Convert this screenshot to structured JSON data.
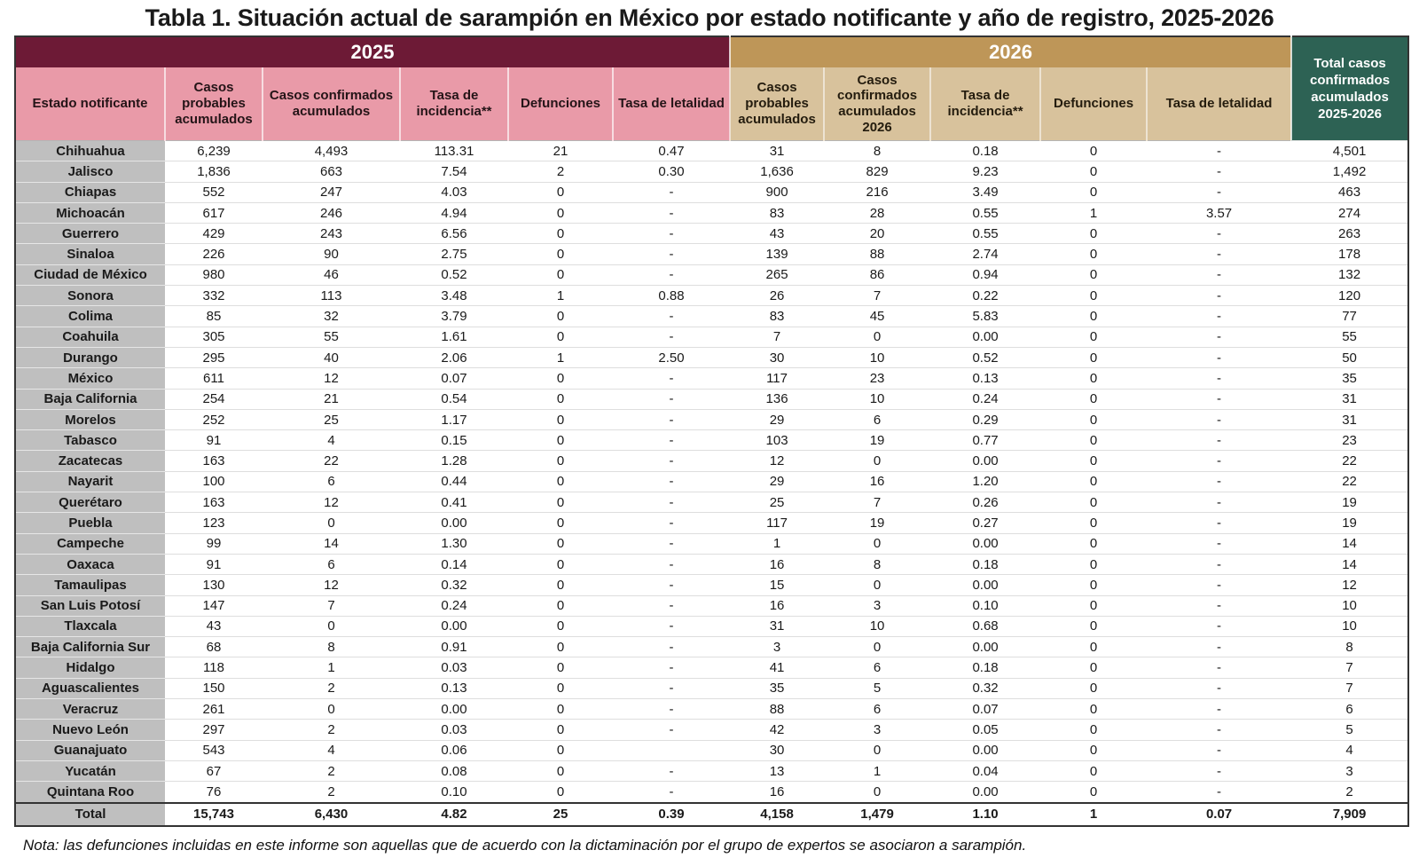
{
  "title": "Tabla 1. Situación actual de sarampión en México por estado notificante y año de registro, 2025-2026",
  "table": {
    "year_2025_label": "2025",
    "year_2026_label": "2026",
    "state_header": "Estado notificante",
    "columns_2025": [
      "Casos probables acumulados",
      "Casos confirmados acumulados",
      "Tasa de incidencia**",
      "Defunciones",
      "Tasa de letalidad"
    ],
    "columns_2026": [
      "Casos probables acumulados",
      "Casos confirmados acumulados 2026",
      "Tasa de incidencia**",
      "Defunciones",
      "Tasa de letalidad"
    ],
    "total_header": "Total casos confirmados acumulados 2025-2026",
    "rows": [
      {
        "state": "Chihuahua",
        "values": [
          "6,239",
          "4,493",
          "113.31",
          "21",
          "0.47",
          "31",
          "8",
          "0.18",
          "0",
          "-",
          "4,501"
        ]
      },
      {
        "state": "Jalisco",
        "values": [
          "1,836",
          "663",
          "7.54",
          "2",
          "0.30",
          "1,636",
          "829",
          "9.23",
          "0",
          "-",
          "1,492"
        ]
      },
      {
        "state": "Chiapas",
        "values": [
          "552",
          "247",
          "4.03",
          "0",
          "-",
          "900",
          "216",
          "3.49",
          "0",
          "-",
          "463"
        ]
      },
      {
        "state": "Michoacán",
        "values": [
          "617",
          "246",
          "4.94",
          "0",
          "-",
          "83",
          "28",
          "0.55",
          "1",
          "3.57",
          "274"
        ]
      },
      {
        "state": "Guerrero",
        "values": [
          "429",
          "243",
          "6.56",
          "0",
          "-",
          "43",
          "20",
          "0.55",
          "0",
          "-",
          "263"
        ]
      },
      {
        "state": "Sinaloa",
        "values": [
          "226",
          "90",
          "2.75",
          "0",
          "-",
          "139",
          "88",
          "2.74",
          "0",
          "-",
          "178"
        ]
      },
      {
        "state": "Ciudad de México",
        "values": [
          "980",
          "46",
          "0.52",
          "0",
          "-",
          "265",
          "86",
          "0.94",
          "0",
          "-",
          "132"
        ]
      },
      {
        "state": "Sonora",
        "values": [
          "332",
          "113",
          "3.48",
          "1",
          "0.88",
          "26",
          "7",
          "0.22",
          "0",
          "-",
          "120"
        ]
      },
      {
        "state": "Colima",
        "values": [
          "85",
          "32",
          "3.79",
          "0",
          "-",
          "83",
          "45",
          "5.83",
          "0",
          "-",
          "77"
        ]
      },
      {
        "state": "Coahuila",
        "values": [
          "305",
          "55",
          "1.61",
          "0",
          "-",
          "7",
          "0",
          "0.00",
          "0",
          "-",
          "55"
        ]
      },
      {
        "state": "Durango",
        "values": [
          "295",
          "40",
          "2.06",
          "1",
          "2.50",
          "30",
          "10",
          "0.52",
          "0",
          "-",
          "50"
        ]
      },
      {
        "state": "México",
        "values": [
          "611",
          "12",
          "0.07",
          "0",
          "-",
          "117",
          "23",
          "0.13",
          "0",
          "-",
          "35"
        ]
      },
      {
        "state": "Baja California",
        "values": [
          "254",
          "21",
          "0.54",
          "0",
          "-",
          "136",
          "10",
          "0.24",
          "0",
          "-",
          "31"
        ]
      },
      {
        "state": "Morelos",
        "values": [
          "252",
          "25",
          "1.17",
          "0",
          "-",
          "29",
          "6",
          "0.29",
          "0",
          "-",
          "31"
        ]
      },
      {
        "state": "Tabasco",
        "values": [
          "91",
          "4",
          "0.15",
          "0",
          "-",
          "103",
          "19",
          "0.77",
          "0",
          "-",
          "23"
        ]
      },
      {
        "state": "Zacatecas",
        "values": [
          "163",
          "22",
          "1.28",
          "0",
          "-",
          "12",
          "0",
          "0.00",
          "0",
          "-",
          "22"
        ]
      },
      {
        "state": "Nayarit",
        "values": [
          "100",
          "6",
          "0.44",
          "0",
          "-",
          "29",
          "16",
          "1.20",
          "0",
          "-",
          "22"
        ]
      },
      {
        "state": "Querétaro",
        "values": [
          "163",
          "12",
          "0.41",
          "0",
          "-",
          "25",
          "7",
          "0.26",
          "0",
          "-",
          "19"
        ]
      },
      {
        "state": "Puebla",
        "values": [
          "123",
          "0",
          "0.00",
          "0",
          "-",
          "117",
          "19",
          "0.27",
          "0",
          "-",
          "19"
        ]
      },
      {
        "state": "Campeche",
        "values": [
          "99",
          "14",
          "1.30",
          "0",
          "-",
          "1",
          "0",
          "0.00",
          "0",
          "-",
          "14"
        ]
      },
      {
        "state": "Oaxaca",
        "values": [
          "91",
          "6",
          "0.14",
          "0",
          "-",
          "16",
          "8",
          "0.18",
          "0",
          "-",
          "14"
        ]
      },
      {
        "state": "Tamaulipas",
        "values": [
          "130",
          "12",
          "0.32",
          "0",
          "-",
          "15",
          "0",
          "0.00",
          "0",
          "-",
          "12"
        ]
      },
      {
        "state": "San Luis Potosí",
        "values": [
          "147",
          "7",
          "0.24",
          "0",
          "-",
          "16",
          "3",
          "0.10",
          "0",
          "-",
          "10"
        ]
      },
      {
        "state": "Tlaxcala",
        "values": [
          "43",
          "0",
          "0.00",
          "0",
          "-",
          "31",
          "10",
          "0.68",
          "0",
          "-",
          "10"
        ]
      },
      {
        "state": "Baja California Sur",
        "values": [
          "68",
          "8",
          "0.91",
          "0",
          "-",
          "3",
          "0",
          "0.00",
          "0",
          "-",
          "8"
        ]
      },
      {
        "state": "Hidalgo",
        "values": [
          "118",
          "1",
          "0.03",
          "0",
          "-",
          "41",
          "6",
          "0.18",
          "0",
          "-",
          "7"
        ]
      },
      {
        "state": "Aguascalientes",
        "values": [
          "150",
          "2",
          "0.13",
          "0",
          "-",
          "35",
          "5",
          "0.32",
          "0",
          "-",
          "7"
        ]
      },
      {
        "state": "Veracruz",
        "values": [
          "261",
          "0",
          "0.00",
          "0",
          "-",
          "88",
          "6",
          "0.07",
          "0",
          "-",
          "6"
        ]
      },
      {
        "state": "Nuevo León",
        "values": [
          "297",
          "2",
          "0.03",
          "0",
          "-",
          "42",
          "3",
          "0.05",
          "0",
          "-",
          "5"
        ]
      },
      {
        "state": "Guanajuato",
        "values": [
          "543",
          "4",
          "0.06",
          "0",
          "",
          "30",
          "0",
          "0.00",
          "0",
          "-",
          "4"
        ]
      },
      {
        "state": "Yucatán",
        "values": [
          "67",
          "2",
          "0.08",
          "0",
          "-",
          "13",
          "1",
          "0.04",
          "0",
          "-",
          "3"
        ]
      },
      {
        "state": "Quintana Roo",
        "values": [
          "76",
          "2",
          "0.10",
          "0",
          "-",
          "16",
          "0",
          "0.00",
          "0",
          "-",
          "2"
        ]
      }
    ],
    "total": {
      "state": "Total",
      "values": [
        "15,743",
        "6,430",
        "4.82",
        "25",
        "0.39",
        "4,158",
        "1,479",
        "1.10",
        "1",
        "0.07",
        "7,909"
      ]
    }
  },
  "note": "Nota: las defunciones incluidas en este informe son aquellas que de acuerdo con la dictaminación por el grupo de expertos se asociaron a sarampión.",
  "colors": {
    "maroon": "#6D1A36",
    "pink": "#E99AA8",
    "gold": "#BE9658",
    "tan": "#D8C29C",
    "green": "#2D6254",
    "gray": "#BFBFBF"
  }
}
